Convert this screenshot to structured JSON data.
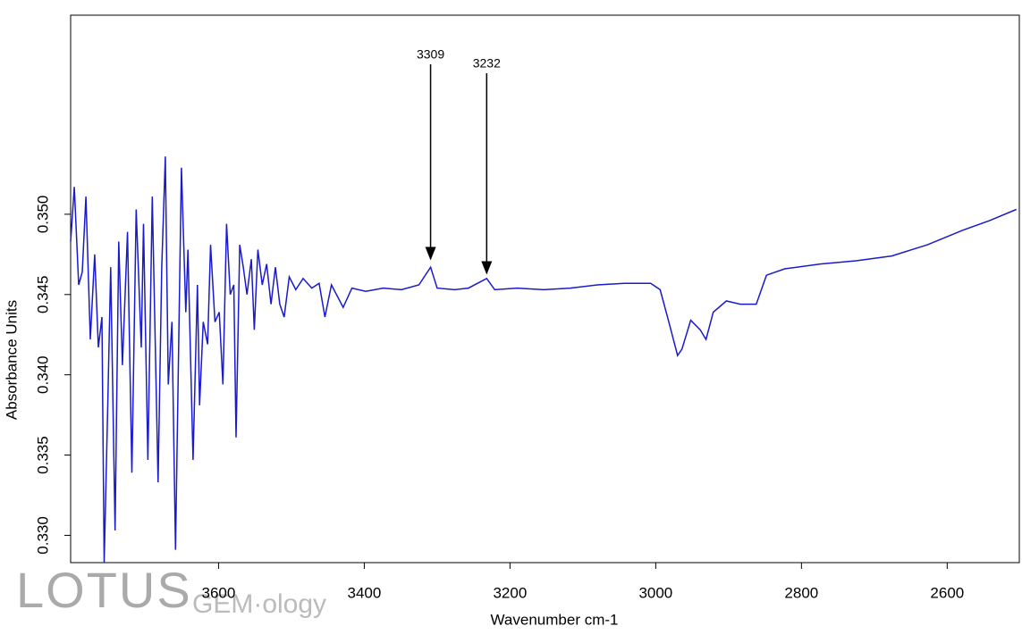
{
  "chart_data": {
    "type": "line",
    "x_label": "Wavenumber cm-1",
    "y_label": "Absorbance Units",
    "xlim": [
      3803,
      2501
    ],
    "xticks": [
      3600,
      3400,
      3200,
      3000,
      2800,
      2600
    ],
    "ylim": [
      0.3283,
      0.3624
    ],
    "yticks": [
      {
        "value": 0.33,
        "label": "0.330"
      },
      {
        "value": 0.335,
        "label": "0.335"
      },
      {
        "value": 0.34,
        "label": "0.340"
      },
      {
        "value": 0.345,
        "label": "0.345"
      },
      {
        "value": 0.35,
        "label": "0.350"
      }
    ],
    "grid": false,
    "annotations": [
      {
        "text": "3309",
        "x": 3309
      },
      {
        "text": "3232",
        "x": 3232
      }
    ],
    "watermark": [
      "LOTUS",
      "GEM·ology"
    ],
    "series": [
      {
        "color": "#1a1acc",
        "x": [
          3803,
          3798,
          3792,
          3787,
          3782,
          3776,
          3770,
          3765,
          3760,
          3757,
          3752,
          3748,
          3742,
          3737,
          3732,
          3725,
          3719,
          3713,
          3706,
          3703,
          3697,
          3691,
          3683,
          3678,
          3673,
          3669,
          3664,
          3659,
          3651,
          3645,
          3642,
          3635,
          3629,
          3626,
          3621,
          3615,
          3611,
          3605,
          3599,
          3594,
          3589,
          3584,
          3579,
          3576,
          3571,
          3566,
          3561,
          3555,
          3551,
          3546,
          3540,
          3534,
          3528,
          3522,
          3516,
          3510,
          3503,
          3494,
          3484,
          3472,
          3462,
          3454,
          3445,
          3429,
          3417,
          3398,
          3374,
          3349,
          3325,
          3309,
          3300,
          3276,
          3257,
          3232,
          3221,
          3190,
          3154,
          3117,
          3080,
          3043,
          3007,
          2994,
          2982,
          2970,
          2964,
          2952,
          2939,
          2931,
          2921,
          2903,
          2884,
          2862,
          2848,
          2823,
          2774,
          2725,
          2676,
          2627,
          2579,
          2542,
          2505
        ],
        "values": [
          0.3483,
          0.3517,
          0.3456,
          0.3464,
          0.3511,
          0.3422,
          0.3475,
          0.3417,
          0.3436,
          0.3283,
          0.3383,
          0.3467,
          0.3303,
          0.3483,
          0.3406,
          0.3489,
          0.3339,
          0.3503,
          0.3417,
          0.3494,
          0.3347,
          0.3511,
          0.3333,
          0.3467,
          0.3536,
          0.3394,
          0.3433,
          0.3291,
          0.3529,
          0.3439,
          0.3478,
          0.3347,
          0.3456,
          0.3381,
          0.3433,
          0.3419,
          0.3481,
          0.3433,
          0.3439,
          0.3394,
          0.3494,
          0.345,
          0.3456,
          0.3361,
          0.3481,
          0.3467,
          0.345,
          0.3472,
          0.3428,
          0.3478,
          0.3456,
          0.3469,
          0.3444,
          0.3467,
          0.3444,
          0.3436,
          0.3461,
          0.3453,
          0.346,
          0.3454,
          0.3457,
          0.3436,
          0.3456,
          0.3442,
          0.3454,
          0.3452,
          0.3454,
          0.3453,
          0.3456,
          0.3467,
          0.3454,
          0.3453,
          0.3454,
          0.346,
          0.3453,
          0.3454,
          0.3453,
          0.3454,
          0.3456,
          0.3457,
          0.3457,
          0.3453,
          0.3433,
          0.3412,
          0.3416,
          0.3434,
          0.3428,
          0.3422,
          0.3439,
          0.3446,
          0.3444,
          0.3444,
          0.3462,
          0.3466,
          0.3469,
          0.3471,
          0.3474,
          0.3481,
          0.349,
          0.3496,
          0.3503
        ]
      }
    ]
  }
}
